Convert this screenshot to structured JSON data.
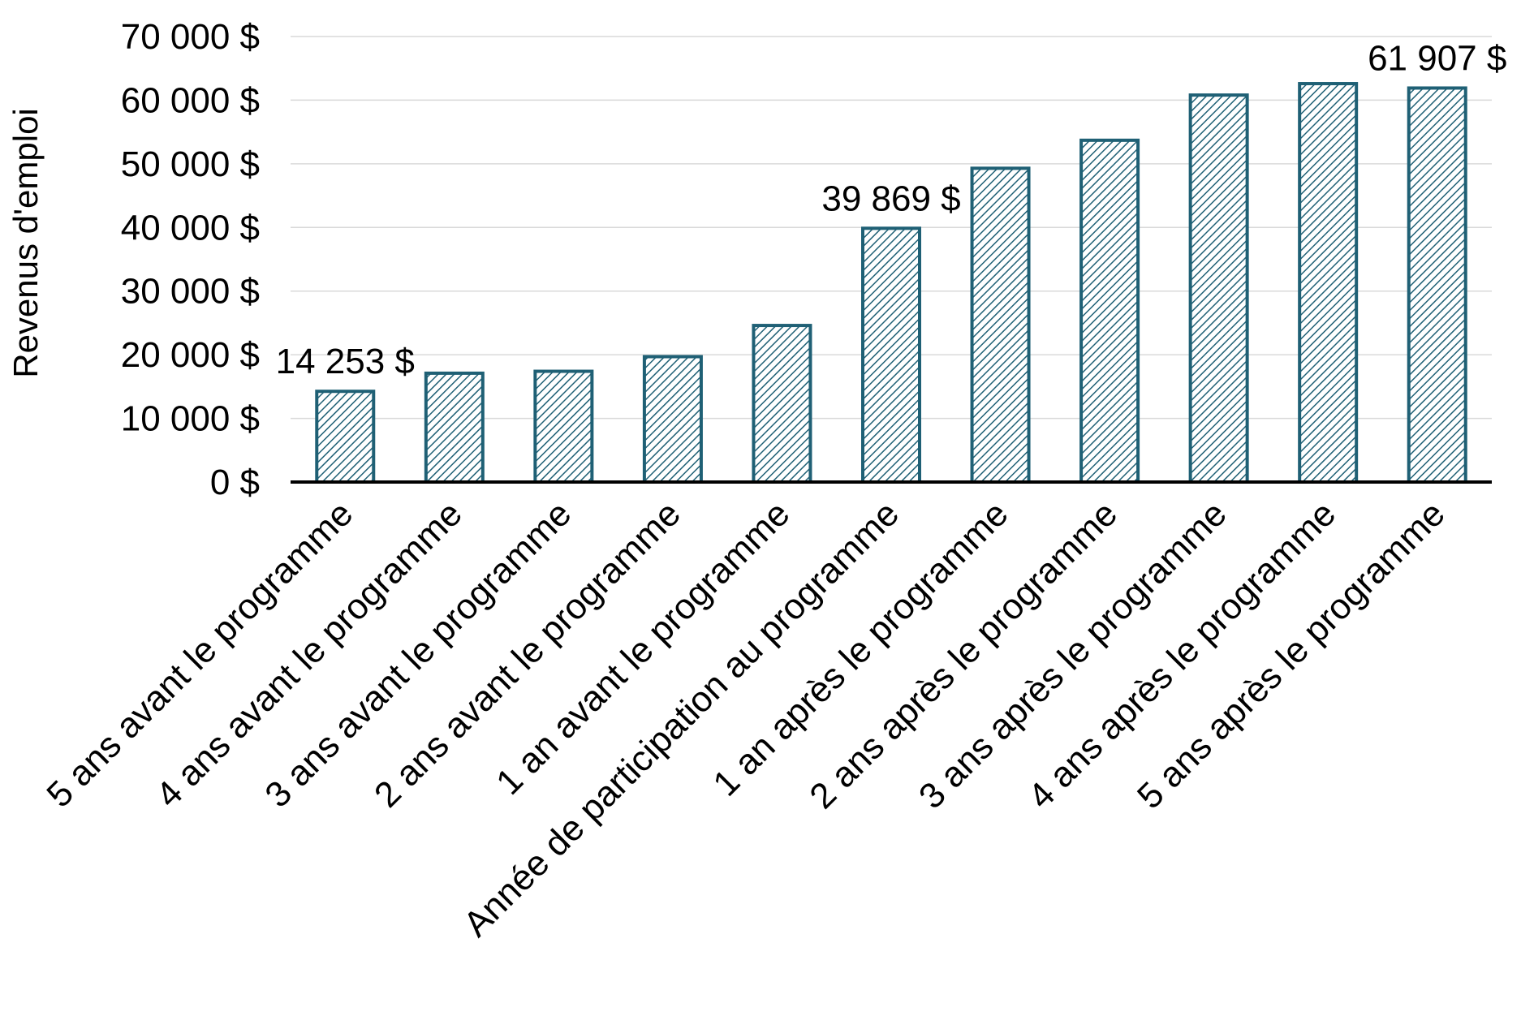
{
  "chart_data": {
    "type": "bar",
    "ylabel": "Revenus d'emploi",
    "xlabel": "",
    "ylim": [
      0,
      70000
    ],
    "yticks": [
      0,
      10000,
      20000,
      30000,
      40000,
      50000,
      60000,
      70000
    ],
    "ytick_labels": [
      "0 $",
      "10 000 $",
      "20 000 $",
      "30 000 $",
      "40 000 $",
      "50 000 $",
      "60 000 $",
      "70 000 $"
    ],
    "grid": true,
    "categories": [
      "5 ans avant le programme",
      "4 ans avant le programme",
      "3 ans avant le programme",
      "2 ans avant le programme",
      "1 an avant le programme",
      "Année de participation au programme",
      "1 an après le programme",
      "2 ans après le programme",
      "3 ans après le programme",
      "4 ans après le programme",
      "5 ans après le programme"
    ],
    "values": [
      14253,
      17100,
      17400,
      19700,
      24600,
      39869,
      49300,
      53700,
      60800,
      62600,
      61907
    ],
    "data_labels": [
      {
        "index": 0,
        "text": "14 253 $"
      },
      {
        "index": 5,
        "text": "39 869 $"
      },
      {
        "index": 10,
        "text": "61 907 $"
      }
    ],
    "colors": {
      "bar_stroke": "#1f6075",
      "bar_hatch": "#1f6075",
      "bar_fill": "#ffffff"
    }
  }
}
